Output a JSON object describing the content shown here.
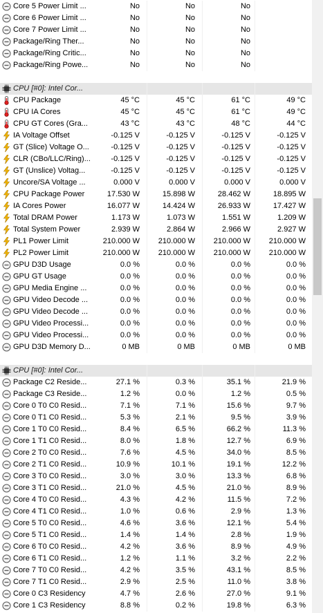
{
  "groups": [
    {
      "kind": "sensors",
      "header": null,
      "center": true,
      "rows": [
        {
          "icon": "clock-icon",
          "label": "Core 5 Power Limit ...",
          "values": [
            "No",
            "No",
            "No",
            ""
          ]
        },
        {
          "icon": "clock-icon",
          "label": "Core 6 Power Limit ...",
          "values": [
            "No",
            "No",
            "No",
            ""
          ]
        },
        {
          "icon": "clock-icon",
          "label": "Core 7 Power Limit ...",
          "values": [
            "No",
            "No",
            "No",
            ""
          ]
        },
        {
          "icon": "clock-icon",
          "label": "Package/Ring Ther...",
          "values": [
            "No",
            "No",
            "No",
            ""
          ]
        },
        {
          "icon": "clock-icon",
          "label": "Package/Ring Critic...",
          "values": [
            "No",
            "No",
            "No",
            ""
          ]
        },
        {
          "icon": "clock-icon",
          "label": "Package/Ring Powe...",
          "values": [
            "No",
            "No",
            "No",
            ""
          ]
        }
      ]
    },
    {
      "kind": "sensors",
      "header": "CPU [#0]: Intel Cor...",
      "center": false,
      "rows": [
        {
          "icon": "thermometer-icon",
          "label": "CPU Package",
          "values": [
            "45 °C",
            "45 °C",
            "61 °C",
            "49 °C"
          ]
        },
        {
          "icon": "thermometer-icon",
          "label": "CPU IA Cores",
          "values": [
            "45 °C",
            "45 °C",
            "61 °C",
            "49 °C"
          ]
        },
        {
          "icon": "thermometer-icon",
          "label": "CPU GT Cores (Gra...",
          "values": [
            "43 °C",
            "43 °C",
            "48 °C",
            "44 °C"
          ]
        },
        {
          "icon": "lightning-icon",
          "label": "IA Voltage Offset",
          "values": [
            "-0.125 V",
            "-0.125 V",
            "-0.125 V",
            "-0.125 V"
          ]
        },
        {
          "icon": "lightning-icon",
          "label": "GT (Slice) Voltage O...",
          "values": [
            "-0.125 V",
            "-0.125 V",
            "-0.125 V",
            "-0.125 V"
          ]
        },
        {
          "icon": "lightning-icon",
          "label": "CLR (CBo/LLC/Ring)...",
          "values": [
            "-0.125 V",
            "-0.125 V",
            "-0.125 V",
            "-0.125 V"
          ]
        },
        {
          "icon": "lightning-icon",
          "label": "GT (Unslice) Voltag...",
          "values": [
            "-0.125 V",
            "-0.125 V",
            "-0.125 V",
            "-0.125 V"
          ]
        },
        {
          "icon": "lightning-icon",
          "label": "Uncore/SA Voltage ...",
          "values": [
            "0.000 V",
            "0.000 V",
            "0.000 V",
            "0.000 V"
          ]
        },
        {
          "icon": "lightning-icon",
          "label": "CPU Package Power",
          "values": [
            "17.530 W",
            "15.898 W",
            "28.462 W",
            "18.895 W"
          ]
        },
        {
          "icon": "lightning-icon",
          "label": "IA Cores Power",
          "values": [
            "16.077 W",
            "14.424 W",
            "26.933 W",
            "17.427 W"
          ]
        },
        {
          "icon": "lightning-icon",
          "label": "Total DRAM Power",
          "values": [
            "1.173 W",
            "1.073 W",
            "1.551 W",
            "1.209 W"
          ]
        },
        {
          "icon": "lightning-icon",
          "label": "Total System Power",
          "values": [
            "2.939 W",
            "2.864 W",
            "2.966 W",
            "2.927 W"
          ]
        },
        {
          "icon": "lightning-icon",
          "label": "PL1 Power Limit",
          "values": [
            "210.000 W",
            "210.000 W",
            "210.000 W",
            "210.000 W"
          ]
        },
        {
          "icon": "lightning-icon",
          "label": "PL2 Power Limit",
          "values": [
            "210.000 W",
            "210.000 W",
            "210.000 W",
            "210.000 W"
          ]
        },
        {
          "icon": "clock-icon",
          "label": "GPU D3D Usage",
          "values": [
            "0.0 %",
            "0.0 %",
            "0.0 %",
            "0.0 %"
          ]
        },
        {
          "icon": "clock-icon",
          "label": "GPU GT Usage",
          "values": [
            "0.0 %",
            "0.0 %",
            "0.0 %",
            "0.0 %"
          ]
        },
        {
          "icon": "clock-icon",
          "label": "GPU Media Engine ...",
          "values": [
            "0.0 %",
            "0.0 %",
            "0.0 %",
            "0.0 %"
          ]
        },
        {
          "icon": "clock-icon",
          "label": "GPU Video Decode ...",
          "values": [
            "0.0 %",
            "0.0 %",
            "0.0 %",
            "0.0 %"
          ]
        },
        {
          "icon": "clock-icon",
          "label": "GPU Video Decode ...",
          "values": [
            "0.0 %",
            "0.0 %",
            "0.0 %",
            "0.0 %"
          ]
        },
        {
          "icon": "clock-icon",
          "label": "GPU Video Processi...",
          "values": [
            "0.0 %",
            "0.0 %",
            "0.0 %",
            "0.0 %"
          ]
        },
        {
          "icon": "clock-icon",
          "label": "GPU Video Processi...",
          "values": [
            "0.0 %",
            "0.0 %",
            "0.0 %",
            "0.0 %"
          ]
        },
        {
          "icon": "clock-icon",
          "label": "GPU D3D Memory D...",
          "values": [
            "0 MB",
            "0 MB",
            "0 MB",
            "0 MB"
          ]
        }
      ]
    },
    {
      "kind": "sensors",
      "header": "CPU [#0]: Intel Cor...",
      "center": false,
      "rows": [
        {
          "icon": "clock-icon",
          "label": "Package C2 Reside...",
          "values": [
            "27.1 %",
            "0.3 %",
            "35.1 %",
            "21.9 %"
          ]
        },
        {
          "icon": "clock-icon",
          "label": "Package C3 Reside...",
          "values": [
            "1.2 %",
            "0.0 %",
            "1.2 %",
            "0.5 %"
          ]
        },
        {
          "icon": "clock-icon",
          "label": "Core 0 T0 C0 Resid...",
          "values": [
            "7.1 %",
            "7.1 %",
            "15.6 %",
            "9.7 %"
          ]
        },
        {
          "icon": "clock-icon",
          "label": "Core 0 T1 C0 Resid...",
          "values": [
            "5.3 %",
            "2.1 %",
            "9.5 %",
            "3.9 %"
          ]
        },
        {
          "icon": "clock-icon",
          "label": "Core 1 T0 C0 Resid...",
          "values": [
            "8.4 %",
            "6.5 %",
            "66.2 %",
            "11.3 %"
          ]
        },
        {
          "icon": "clock-icon",
          "label": "Core 1 T1 C0 Resid...",
          "values": [
            "8.0 %",
            "1.8 %",
            "12.7 %",
            "6.9 %"
          ]
        },
        {
          "icon": "clock-icon",
          "label": "Core 2 T0 C0 Resid...",
          "values": [
            "7.6 %",
            "4.5 %",
            "34.0 %",
            "8.5 %"
          ]
        },
        {
          "icon": "clock-icon",
          "label": "Core 2 T1 C0 Resid...",
          "values": [
            "10.9 %",
            "10.1 %",
            "19.1 %",
            "12.2 %"
          ]
        },
        {
          "icon": "clock-icon",
          "label": "Core 3 T0 C0 Resid...",
          "values": [
            "3.0 %",
            "3.0 %",
            "13.3 %",
            "6.8 %"
          ]
        },
        {
          "icon": "clock-icon",
          "label": "Core 3 T1 C0 Resid...",
          "values": [
            "21.0 %",
            "4.5 %",
            "21.0 %",
            "8.9 %"
          ]
        },
        {
          "icon": "clock-icon",
          "label": "Core 4 T0 C0 Resid...",
          "values": [
            "4.3 %",
            "4.2 %",
            "11.5 %",
            "7.2 %"
          ]
        },
        {
          "icon": "clock-icon",
          "label": "Core 4 T1 C0 Resid...",
          "values": [
            "1.0 %",
            "0.6 %",
            "2.9 %",
            "1.3 %"
          ]
        },
        {
          "icon": "clock-icon",
          "label": "Core 5 T0 C0 Resid...",
          "values": [
            "4.6 %",
            "3.6 %",
            "12.1 %",
            "5.4 %"
          ]
        },
        {
          "icon": "clock-icon",
          "label": "Core 5 T1 C0 Resid...",
          "values": [
            "1.4 %",
            "1.4 %",
            "2.8 %",
            "1.9 %"
          ]
        },
        {
          "icon": "clock-icon",
          "label": "Core 6 T0 C0 Resid...",
          "values": [
            "4.2 %",
            "3.6 %",
            "8.9 %",
            "4.9 %"
          ]
        },
        {
          "icon": "clock-icon",
          "label": "Core 6 T1 C0 Resid...",
          "values": [
            "1.2 %",
            "1.1 %",
            "3.2 %",
            "2.2 %"
          ]
        },
        {
          "icon": "clock-icon",
          "label": "Core 7 T0 C0 Resid...",
          "values": [
            "4.2 %",
            "3.5 %",
            "43.1 %",
            "8.5 %"
          ]
        },
        {
          "icon": "clock-icon",
          "label": "Core 7 T1 C0 Resid...",
          "values": [
            "2.9 %",
            "2.5 %",
            "11.0 %",
            "3.8 %"
          ]
        },
        {
          "icon": "clock-icon",
          "label": "Core 0 C3 Residency",
          "values": [
            "4.7 %",
            "2.6 %",
            "27.0 %",
            "9.1 %"
          ]
        },
        {
          "icon": "clock-icon",
          "label": "Core 1 C3 Residency",
          "values": [
            "8.8 %",
            "0.2 %",
            "19.8 %",
            "6.3 %"
          ]
        }
      ]
    }
  ]
}
